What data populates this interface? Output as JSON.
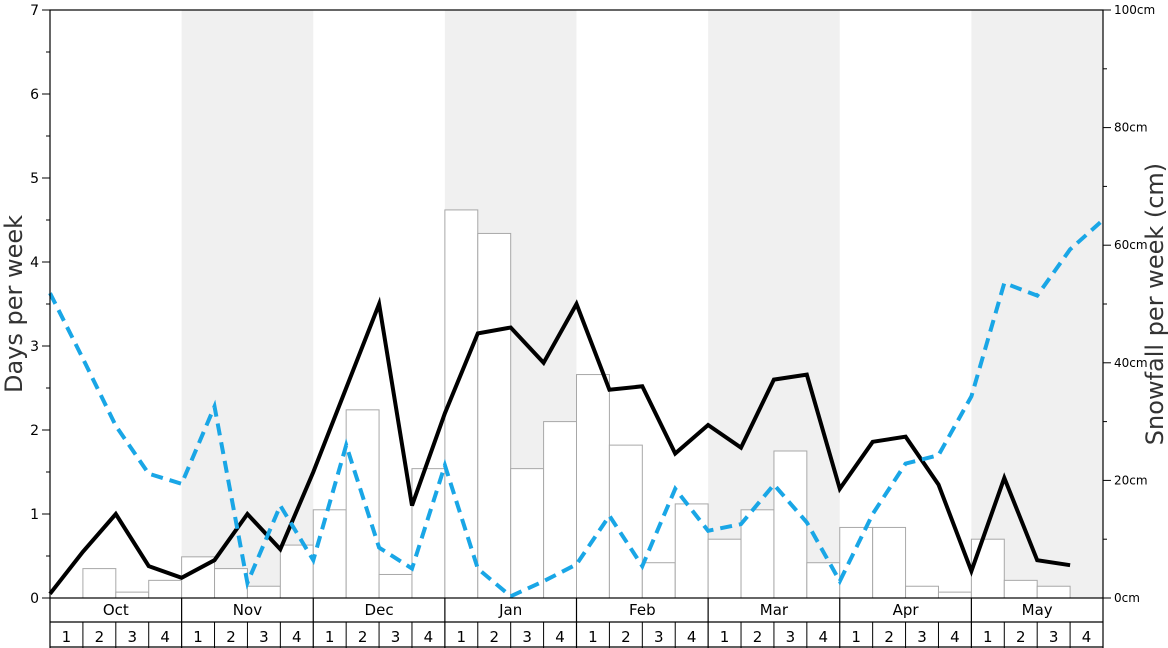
{
  "chart_data": {
    "type": "bar+line",
    "title": "",
    "months": [
      "Oct",
      "Nov",
      "Dec",
      "Jan",
      "Feb",
      "Mar",
      "Apr",
      "May"
    ],
    "week_labels": [
      "1",
      "2",
      "3",
      "4"
    ],
    "y_left": {
      "label": "Days per week",
      "range": [
        0,
        7
      ],
      "ticks": [
        "0",
        "1",
        "2",
        "3",
        "4",
        "5",
        "6",
        "7"
      ]
    },
    "y_right": {
      "label": "Snowfall per week (cm)",
      "range": [
        0,
        100
      ],
      "ticks": [
        "0cm",
        "20cm",
        "40cm",
        "60cm",
        "80cm",
        "100cm"
      ]
    },
    "snowfall_bars_cm": [
      0,
      5,
      1,
      3,
      7,
      5,
      2,
      9,
      15,
      32,
      4,
      22,
      66,
      62,
      22,
      30,
      38,
      26,
      6,
      16,
      10,
      15,
      25,
      6,
      12,
      12,
      2,
      1,
      10,
      3,
      2,
      0
    ],
    "days_solid_line": [
      0.05,
      0.55,
      1.0,
      0.38,
      0.24,
      0.45,
      1.0,
      0.58,
      1.5,
      2.5,
      3.5,
      1.1,
      2.2,
      3.15,
      3.22,
      2.8,
      3.5,
      2.48,
      2.52,
      1.72,
      2.06,
      1.79,
      2.6,
      2.66,
      1.3,
      1.86,
      1.92,
      1.35,
      0.32,
      1.43,
      0.45,
      0.39
    ],
    "days_dashed_line": [
      3.63,
      2.85,
      2.05,
      1.48,
      1.36,
      2.28,
      0.18,
      1.1,
      0.45,
      1.82,
      0.6,
      0.35,
      1.58,
      0.35,
      0.02,
      0.2,
      0.4,
      0.98,
      0.38,
      1.3,
      0.8,
      0.88,
      1.35,
      0.9,
      0.2,
      1.0,
      1.6,
      1.7,
      2.4,
      3.75,
      3.6,
      4.15,
      4.5
    ],
    "colors": {
      "band_shade": "#f0f0f0",
      "bar_fill": "#ffffff",
      "bar_stroke": "#a8a8a8",
      "solid_line": "#000000",
      "dashed_line": "#19a6e6",
      "axis": "#000000"
    },
    "grid": false
  }
}
